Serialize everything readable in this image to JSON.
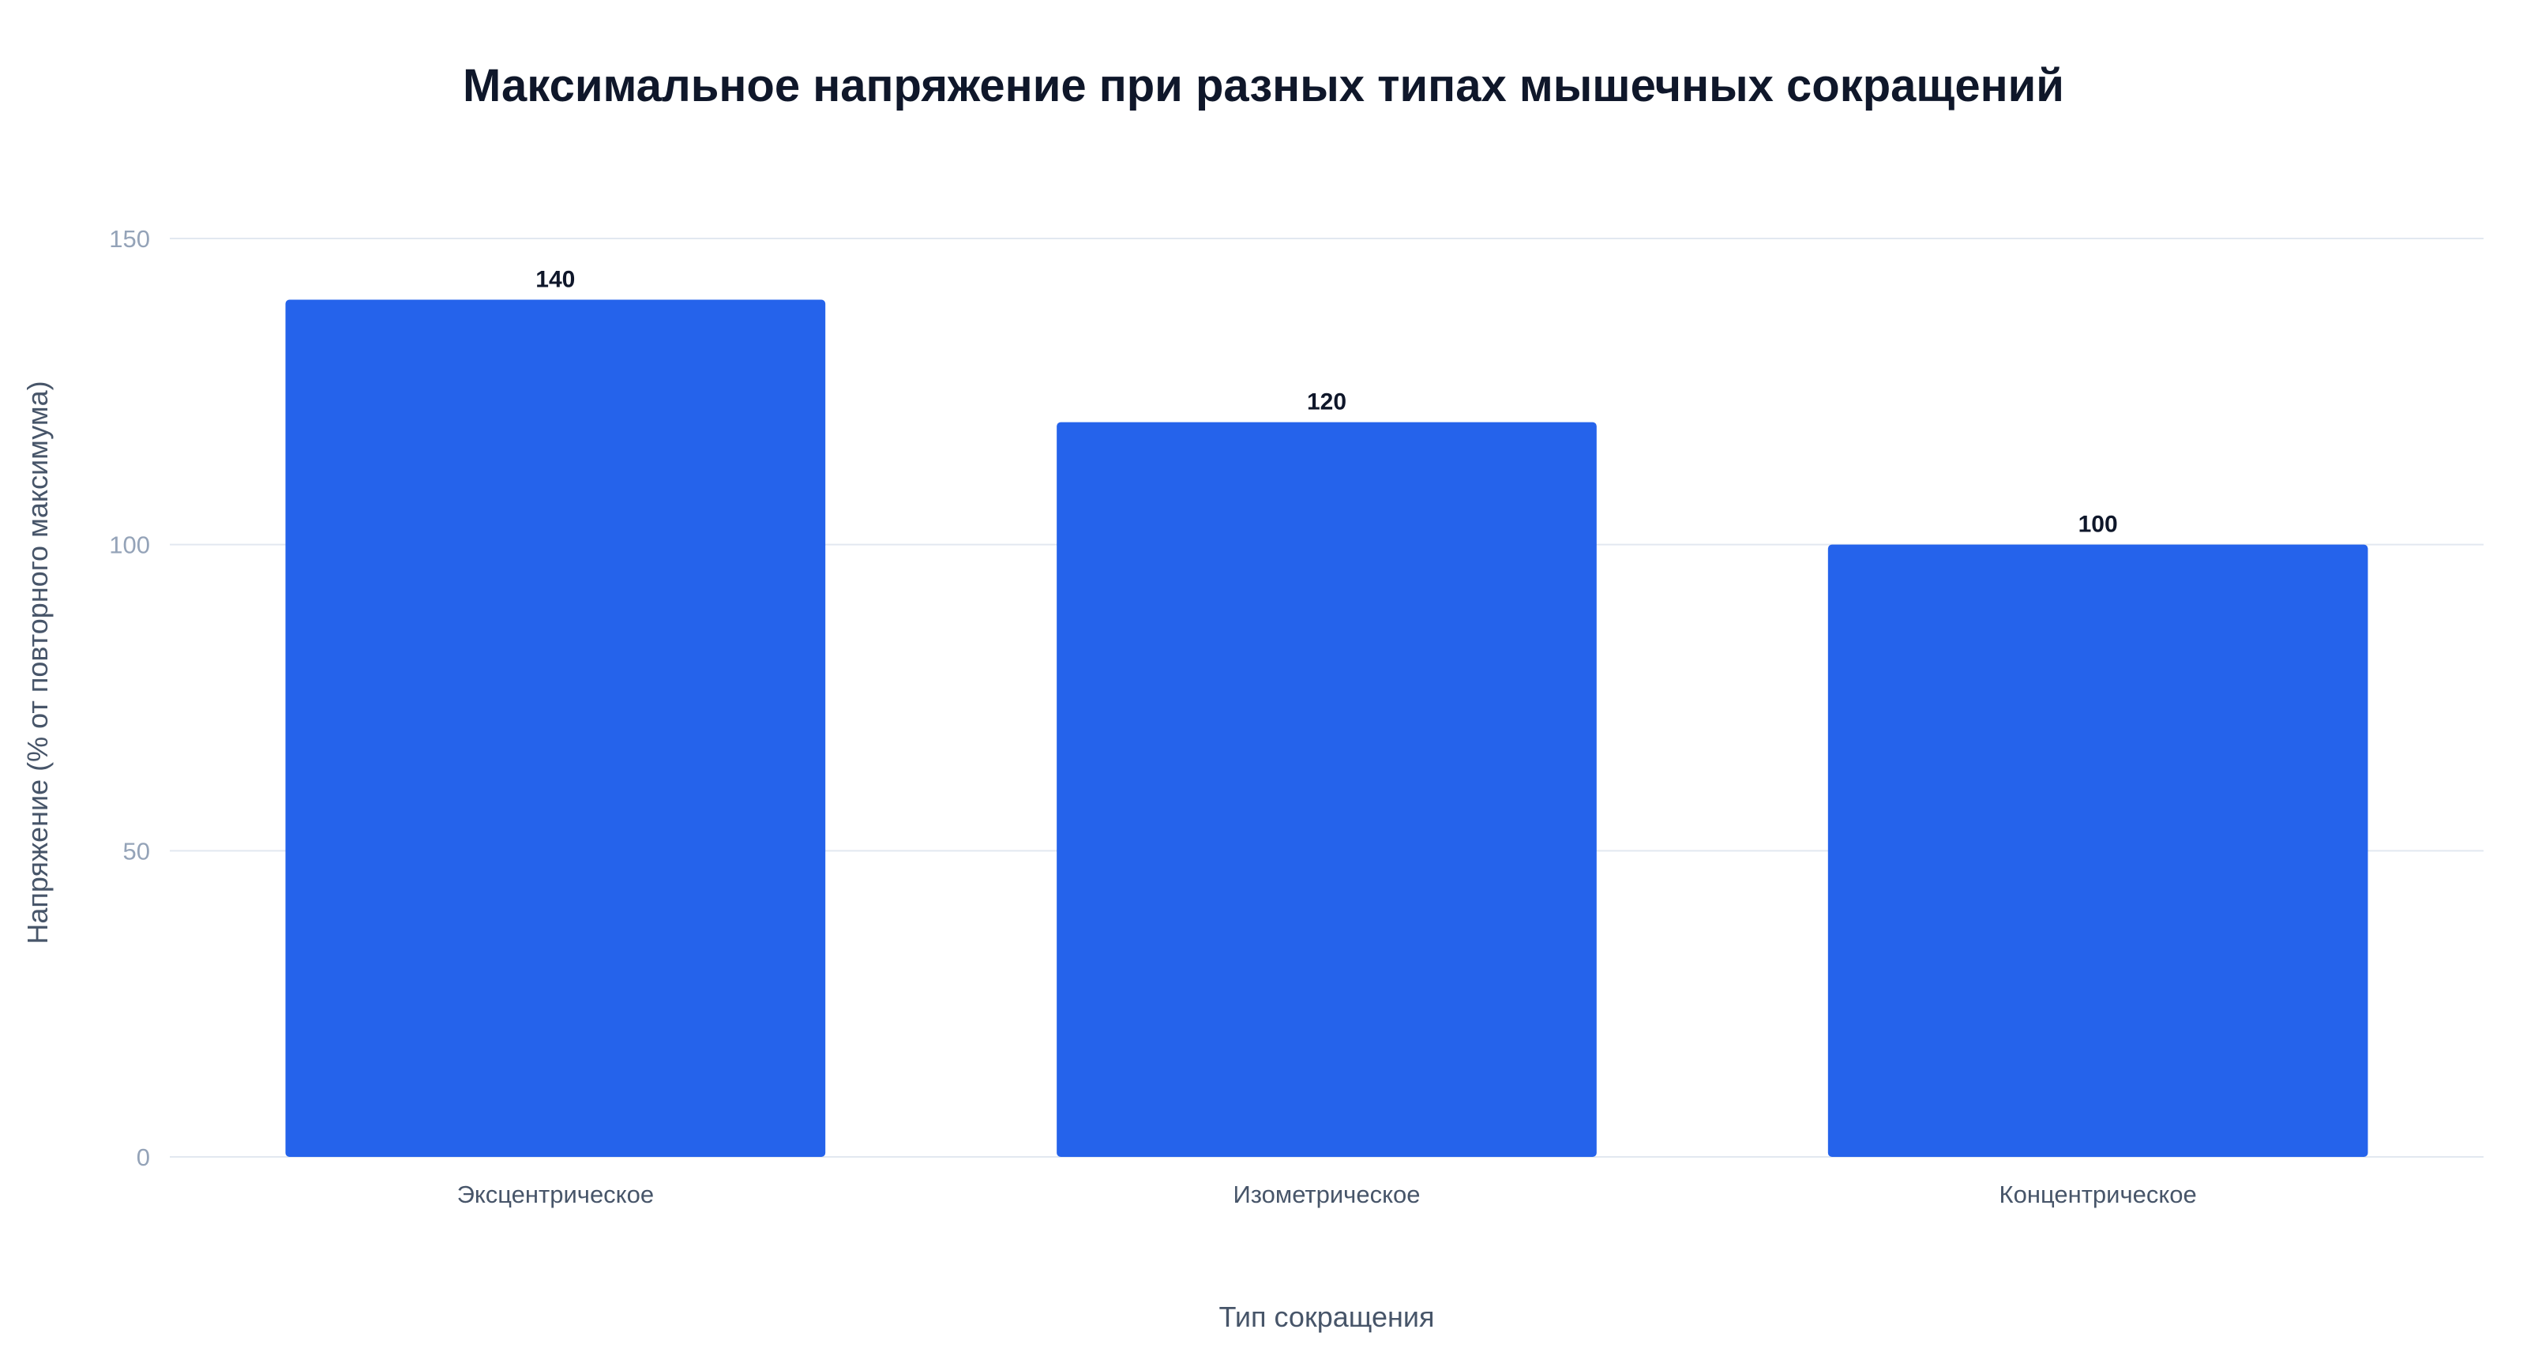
{
  "chart_data": {
    "type": "bar",
    "title": "Максимальное напряжение при разных типах мышечных сокращений",
    "xlabel": "Тип сокращения",
    "ylabel": "Напряжение (% от повторного максимума)",
    "categories": [
      "Эксцентрическое",
      "Изометрическое",
      "Концентрическое"
    ],
    "values": [
      140,
      120,
      100
    ],
    "value_labels": [
      "140",
      "120",
      "100"
    ],
    "ylim": [
      0,
      150
    ],
    "yticks": [
      0,
      50,
      100,
      150
    ],
    "ytick_labels": [
      "0",
      "50",
      "100",
      "150"
    ],
    "grid": true,
    "legend": "none",
    "bar_color": "#2563eb",
    "grid_color": "#e2e8f0"
  }
}
